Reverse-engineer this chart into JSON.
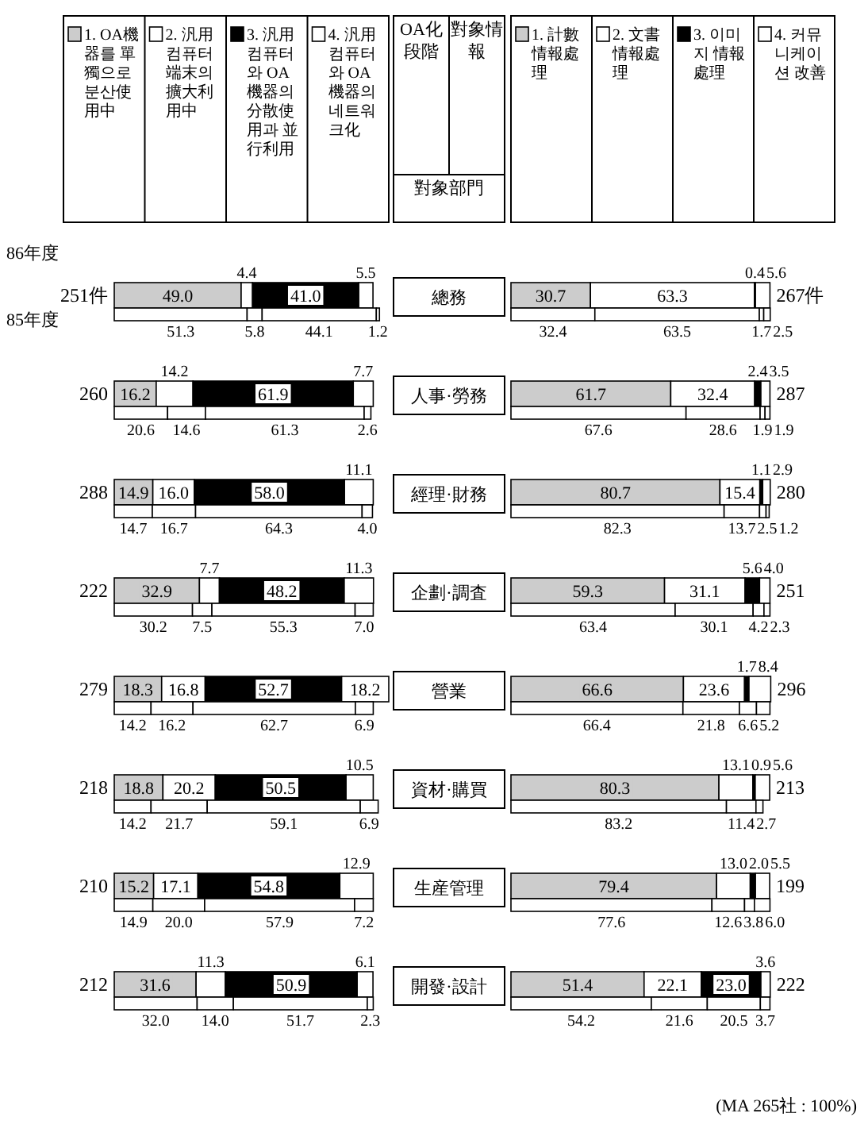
{
  "chart_data": [
    {
      "type": "bar",
      "orientation": "horizontal",
      "stacked": true,
      "title": "OA化段階",
      "ylabel": "對象部門",
      "legend": "top",
      "tick_labels": "y",
      "categories": [
        "總務",
        "人事·勞務",
        "經理·財務",
        "企劃·調査",
        "營業",
        "資材·購買",
        "生産管理",
        "開發·設計"
      ],
      "series": [
        {
          "name": "1. OA機器를 單獨으로 분산使用中",
          "color": "#cccccc",
          "values": [
            49.0,
            16.2,
            14.9,
            32.9,
            18.3,
            18.8,
            15.2,
            31.6
          ],
          "value_labels": [
            "49.0",
            "16.2",
            "14.9",
            "32.9",
            "18.3",
            "18.8",
            "15.2",
            "31.6"
          ]
        },
        {
          "name": "2. 汎用컴퓨터端末의 擴大利用中",
          "color": "#ffffff",
          "values": [
            4.4,
            14.2,
            16.0,
            7.7,
            16.8,
            20.2,
            17.1,
            11.3
          ],
          "value_labels": [
            "4.4",
            "14.2",
            "16.0",
            "7.7",
            "16.8",
            "20.2",
            "17.1",
            "11.3"
          ]
        },
        {
          "name": "3. 汎用컴퓨터와 OA機器의 分散使用과 並行利用",
          "color": "#000000",
          "values": [
            41.0,
            61.9,
            58.0,
            48.2,
            52.7,
            50.5,
            54.8,
            50.9
          ],
          "value_labels": [
            "41.0",
            "61.9",
            "58.0",
            "48.2",
            "52.7",
            "50.5",
            "54.8",
            "50.9"
          ]
        },
        {
          "name": "4. 汎用컴퓨터와 OA機器의 네트워크化",
          "color": "#ffffff",
          "values": [
            5.5,
            7.7,
            11.1,
            11.3,
            18.2,
            10.5,
            12.9,
            6.1
          ],
          "value_labels": [
            "5.5",
            "7.7",
            "11.1",
            "11.3",
            "18.2",
            "10.5",
            "12.9",
            "6.1"
          ]
        }
      ],
      "annotations": [
        "86年度",
        "251件",
        "260",
        "288",
        "222",
        "279",
        "218",
        "210",
        "212"
      ]
    },
    {
      "type": "bar",
      "orientation": "horizontal",
      "stacked": true,
      "tick_labels": false,
      "categories": [
        null,
        null,
        null,
        null,
        null,
        null,
        null,
        null
      ],
      "series": [
        {
          "color": "#ffffff",
          "values": [
            51.3,
            20.6,
            14.7,
            30.2,
            14.2,
            14.2,
            14.9,
            32.0
          ],
          "value_labels": [
            "51.3",
            "20.6",
            "14.7",
            "30.2",
            "14.2",
            "14.2",
            "14.9",
            "32.0"
          ]
        },
        {
          "color": "#ffffff",
          "values": [
            5.8,
            14.6,
            16.7,
            7.5,
            16.2,
            21.7,
            20.0,
            14.0
          ],
          "value_labels": [
            "5.8",
            "14.6",
            "16.7",
            "7.5",
            "16.2",
            "21.7",
            "20.0",
            "14.0"
          ]
        },
        {
          "color": "#ffffff",
          "values": [
            44.1,
            61.3,
            64.3,
            55.3,
            62.7,
            59.1,
            57.9,
            51.7
          ],
          "value_labels": [
            "44.1",
            "61.3",
            "64.3",
            "55.3",
            "62.7",
            "59.1",
            "57.9",
            "51.7"
          ]
        },
        {
          "color": "#ffffff",
          "values": [
            1.2,
            2.6,
            4.0,
            7.0,
            6.9,
            6.9,
            7.2,
            2.3
          ],
          "value_labels": [
            "1.2",
            "2.6",
            "4.0",
            "7.0",
            "6.9",
            "6.9",
            "7.2",
            "2.3"
          ]
        }
      ],
      "annotations": [
        "85年度"
      ]
    },
    {
      "type": "bar",
      "orientation": "horizontal",
      "stacked": true,
      "title": "對象情報",
      "legend": "top",
      "tick_labels": false,
      "categories": [
        null,
        null,
        null,
        null,
        null,
        null,
        null,
        null
      ],
      "series": [
        {
          "name": "1. 計數情報處理",
          "color": "#cccccc",
          "values": [
            30.7,
            61.7,
            80.7,
            59.3,
            66.6,
            80.3,
            79.4,
            51.4
          ],
          "value_labels": [
            "30.7",
            "61.7",
            "80.7",
            "59.3",
            "66.6",
            "80.3",
            "79.4",
            "51.4"
          ]
        },
        {
          "name": "2. 文書情報處理",
          "color": "#ffffff",
          "values": [
            63.3,
            32.4,
            15.4,
            31.1,
            23.6,
            13.1,
            13.0,
            22.1
          ],
          "value_labels": [
            "63.3",
            "32.4",
            "15.4",
            "31.1",
            "23.6",
            "13.1",
            "13.0",
            "22.1"
          ]
        },
        {
          "name": "3. 이미지 情報處理",
          "color": "#000000",
          "values": [
            0.4,
            2.4,
            1.1,
            5.6,
            1.7,
            0.9,
            2.0,
            23.0
          ],
          "value_labels": [
            "0.4",
            "2.4",
            "1.1",
            "5.6",
            "1.7",
            "0.9",
            "2.0",
            "23.0"
          ]
        },
        {
          "name": "4. 커뮤니케이션 改善",
          "color": "#ffffff",
          "values": [
            5.6,
            3.5,
            2.9,
            4.0,
            8.4,
            5.6,
            5.5,
            3.6
          ],
          "value_labels": [
            "5.6",
            "3.5",
            "2.9",
            "4.0",
            "8.4",
            "5.6",
            "5.5",
            "3.6"
          ]
        }
      ],
      "annotations": [
        "267件",
        "287",
        "280",
        "251",
        "296",
        "213",
        "199",
        "222"
      ]
    },
    {
      "type": "bar",
      "orientation": "horizontal",
      "stacked": true,
      "tick_labels": false,
      "categories": [
        null,
        null,
        null,
        null,
        null,
        null,
        null,
        null
      ],
      "series": [
        {
          "color": "#ffffff",
          "values": [
            32.4,
            67.6,
            82.3,
            63.4,
            66.4,
            83.2,
            77.6,
            54.2
          ],
          "value_labels": [
            "32.4",
            "67.6",
            "82.3",
            "63.4",
            "66.4",
            "83.2",
            "77.6",
            "54.2"
          ]
        },
        {
          "color": "#ffffff",
          "values": [
            63.5,
            28.6,
            13.7,
            30.1,
            21.8,
            11.4,
            12.6,
            21.6
          ],
          "value_labels": [
            "63.5",
            "28.6",
            "13.7",
            "30.1",
            "21.8",
            "11.4",
            "12.6",
            "21.6"
          ]
        },
        {
          "color": "#ffffff",
          "values": [
            1.7,
            1.9,
            2.5,
            4.2,
            6.6,
            2.7,
            3.8,
            20.5
          ],
          "value_labels": [
            "1.7",
            "1.9",
            "2.5",
            "4.2",
            "6.6",
            "2.7",
            "3.8",
            "20.5"
          ]
        },
        {
          "color": "#ffffff",
          "values": [
            2.5,
            1.9,
            1.2,
            2.3,
            5.2,
            null,
            6.0,
            3.7
          ],
          "value_labels": [
            "2.5",
            "1.9",
            "1.2",
            "2.3",
            "5.2",
            null,
            "6.0",
            "3.7"
          ]
        }
      ],
      "annotations": [
        "(MA 265社 : 100%)"
      ]
    }
  ]
}
